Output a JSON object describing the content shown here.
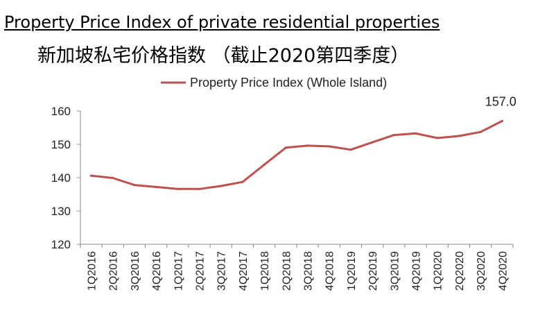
{
  "titles": {
    "english": "Property Price Index of private residential properties",
    "chinese": "新加坡私宅价格指数  （截止2020第四季度）"
  },
  "chart_data": {
    "type": "line",
    "title": "Property Price Index of private residential properties",
    "xlabel": "",
    "ylabel": "",
    "ylim": [
      120,
      160
    ],
    "yticks": [
      120,
      130,
      140,
      150,
      160
    ],
    "categories": [
      "1Q2016",
      "2Q2016",
      "3Q2016",
      "4Q2016",
      "1Q2017",
      "2Q2017",
      "3Q2017",
      "4Q2017",
      "1Q2018",
      "2Q2018",
      "3Q2018",
      "4Q2018",
      "1Q2019",
      "2Q2019",
      "3Q2019",
      "4Q2019",
      "1Q2020",
      "2Q2020",
      "3Q2020",
      "4Q2020"
    ],
    "series": [
      {
        "name": "Property Price Index (Whole Island)",
        "color": "#c0504d",
        "values": [
          140.6,
          139.9,
          137.8,
          137.2,
          136.6,
          136.6,
          137.5,
          138.7,
          143.9,
          149.0,
          149.6,
          149.4,
          148.4,
          150.6,
          152.8,
          153.3,
          151.9,
          152.5,
          153.7,
          157.0
        ]
      }
    ],
    "data_labels": [
      {
        "index": 19,
        "text": "157.0"
      }
    ],
    "legend": "top-center",
    "grid": false
  }
}
